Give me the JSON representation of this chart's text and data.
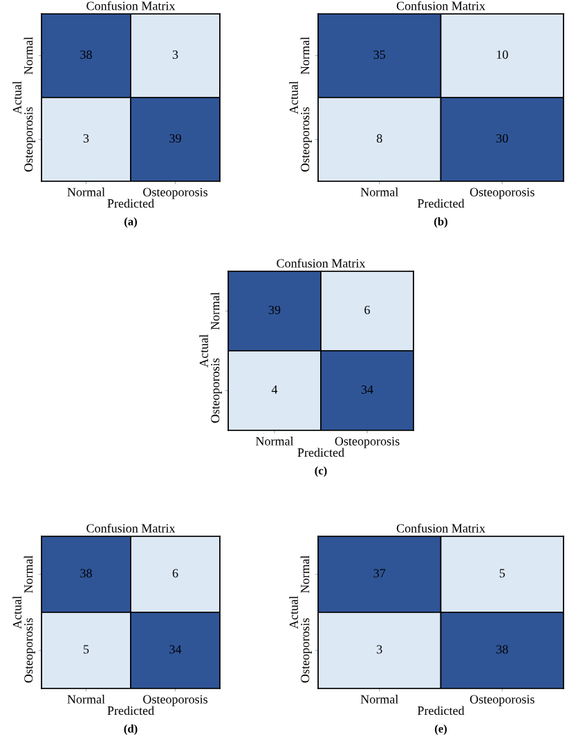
{
  "chart_data": [
    {
      "type": "heatmap",
      "title": "Confusion Matrix",
      "xlabel": "Predicted",
      "ylabel": "Actual",
      "categories": [
        "Normal",
        "Osteoporosis"
      ],
      "y_categories": [
        "Normal",
        "Osteoporosis"
      ],
      "cells": [
        [
          38,
          3
        ],
        [
          3,
          39
        ]
      ],
      "data_labels": true,
      "colors": [
        "#dde8f5",
        "#2f5597"
      ],
      "annotations": [
        "(a)"
      ]
    },
    {
      "type": "heatmap",
      "title": "Confusion Matrix",
      "xlabel": "Predicted",
      "ylabel": "Actual",
      "categories": [
        "Normal",
        "Osteoporosis"
      ],
      "y_categories": [
        "Normal",
        "Osteoporosis"
      ],
      "cells": [
        [
          35,
          10
        ],
        [
          8,
          30
        ]
      ],
      "data_labels": true,
      "colors": [
        "#dde8f5",
        "#2f5597"
      ],
      "annotations": [
        "(b)"
      ]
    },
    {
      "type": "heatmap",
      "title": "Confusion Matrix",
      "xlabel": "Predicted",
      "ylabel": "Actual",
      "categories": [
        "Normal",
        "Osteoporosis"
      ],
      "y_categories": [
        "Normal",
        "Osteoporosis"
      ],
      "cells": [
        [
          39,
          6
        ],
        [
          4,
          34
        ]
      ],
      "data_labels": true,
      "colors": [
        "#dde8f5",
        "#2f5597"
      ],
      "annotations": [
        "(c)"
      ]
    },
    {
      "type": "heatmap",
      "title": "Confusion Matrix",
      "xlabel": "Predicted",
      "ylabel": "Actual",
      "categories": [
        "Normal",
        "Osteoporosis"
      ],
      "y_categories": [
        "Normal",
        "Osteoporosis"
      ],
      "cells": [
        [
          38,
          6
        ],
        [
          5,
          34
        ]
      ],
      "data_labels": true,
      "colors": [
        "#dde8f5",
        "#2f5597"
      ],
      "annotations": [
        "(d)"
      ]
    },
    {
      "type": "heatmap",
      "title": "Confusion Matrix",
      "xlabel": "Predicted",
      "ylabel": "Actual",
      "categories": [
        "Normal",
        "Osteoporosis"
      ],
      "y_categories": [
        "Normal",
        "Osteoporosis"
      ],
      "cells": [
        [
          37,
          5
        ],
        [
          3,
          38
        ]
      ],
      "data_labels": true,
      "colors": [
        "#dde8f5",
        "#2f5597"
      ],
      "annotations": [
        "(e)"
      ]
    }
  ]
}
